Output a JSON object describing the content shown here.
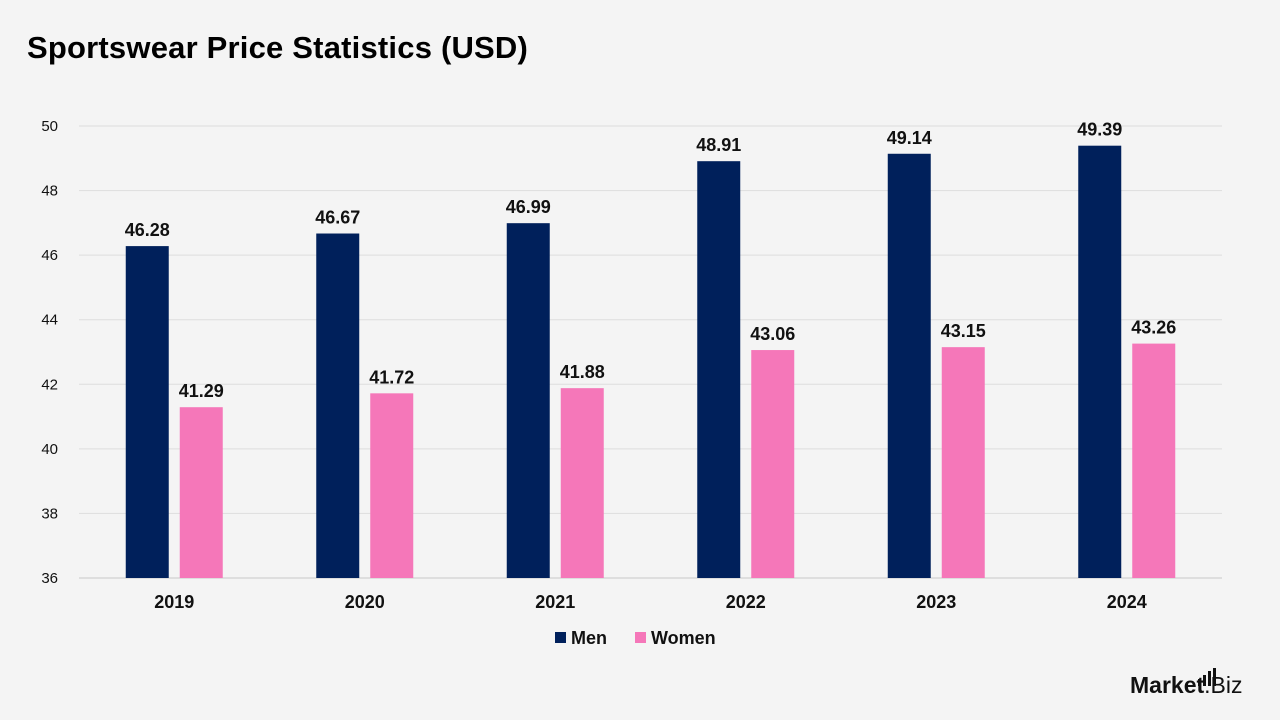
{
  "chart_data": {
    "type": "bar",
    "title": "Sportswear Price Statistics (USD)",
    "categories": [
      "2019",
      "2020",
      "2021",
      "2022",
      "2023",
      "2024"
    ],
    "series": [
      {
        "name": "Men",
        "color": "#00205b",
        "values": [
          46.28,
          46.67,
          46.99,
          48.91,
          49.14,
          49.39
        ]
      },
      {
        "name": "Women",
        "color": "#f577b9",
        "values": [
          41.29,
          41.72,
          41.88,
          43.06,
          43.15,
          43.26
        ]
      }
    ],
    "ylim": [
      36,
      50
    ],
    "yticks": [
      36,
      38,
      40,
      42,
      44,
      46,
      48,
      50
    ],
    "grid": true,
    "legend_position": "bottom-center",
    "data_labels": true
  },
  "brand": {
    "part1": "Market",
    "part2": ".Biz"
  }
}
